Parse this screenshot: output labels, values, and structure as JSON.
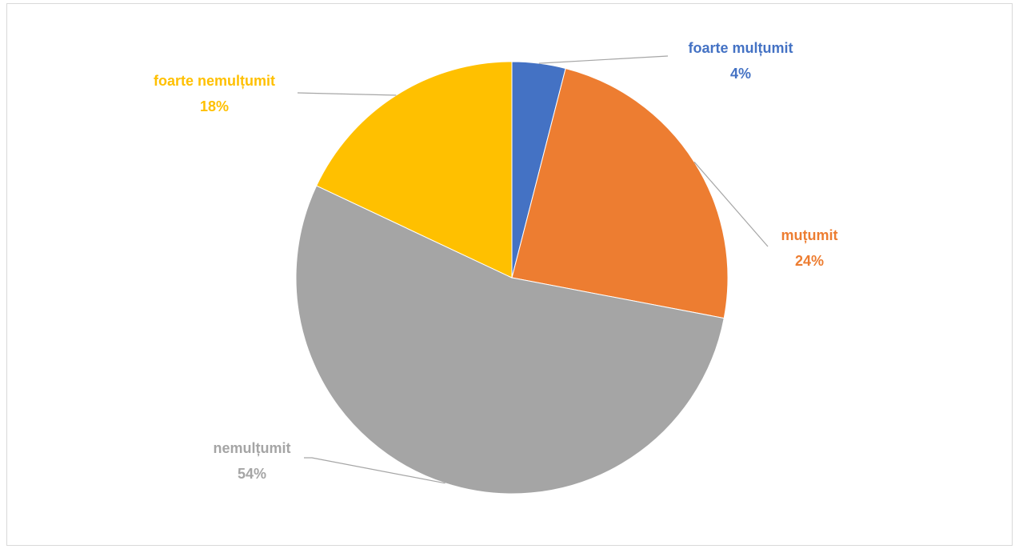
{
  "chart_data": {
    "type": "pie",
    "title": "",
    "slices": [
      {
        "label": "foarte mulțumit",
        "value": 4,
        "value_label": "4%",
        "color": "#4472c4"
      },
      {
        "label": "muțumit",
        "value": 24,
        "value_label": "24%",
        "color": "#ed7d31"
      },
      {
        "label": "nemulțumit",
        "value": 54,
        "value_label": "54%",
        "color": "#a5a5a5"
      },
      {
        "label": "foarte nemulțumit",
        "value": 18,
        "value_label": "18%",
        "color": "#ffc000"
      }
    ],
    "legend": "none",
    "data_labels": "outside with leader lines"
  }
}
